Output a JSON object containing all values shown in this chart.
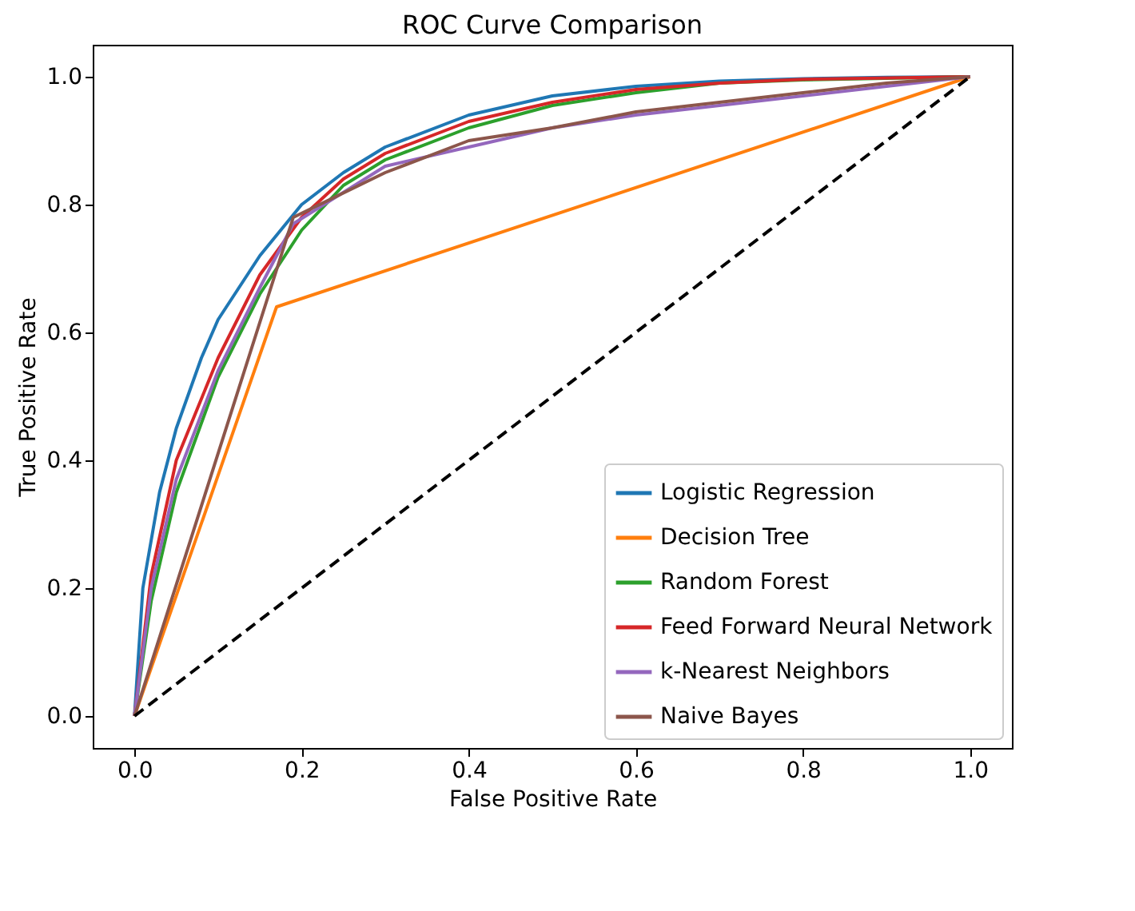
{
  "chart_data": {
    "type": "line",
    "title": "ROC Curve Comparison",
    "xlabel": "False Positive Rate",
    "ylabel": "True Positive Rate",
    "xlim": [
      -0.05,
      1.05
    ],
    "ylim": [
      -0.05,
      1.05
    ],
    "xticks": [
      {
        "value": 0,
        "label": "0.0"
      },
      {
        "value": 0.2,
        "label": "0.2"
      },
      {
        "value": 0.4,
        "label": "0.4"
      },
      {
        "value": 0.6,
        "label": "0.6"
      },
      {
        "value": 0.8,
        "label": "0.8"
      },
      {
        "value": 1,
        "label": "1.0"
      }
    ],
    "yticks": [
      {
        "value": 0,
        "label": "0.0"
      },
      {
        "value": 0.2,
        "label": "0.2"
      },
      {
        "value": 0.4,
        "label": "0.4"
      },
      {
        "value": 0.6,
        "label": "0.6"
      },
      {
        "value": 0.8,
        "label": "0.8"
      },
      {
        "value": 1,
        "label": "1.0"
      }
    ],
    "grid": false,
    "legend": "bottom right",
    "line_style": "solid",
    "series": [
      {
        "name": "Logistic Regression",
        "color": "#1f77b4",
        "x": [
          0,
          0.01,
          0.03,
          0.05,
          0.08,
          0.1,
          0.15,
          0.2,
          0.25,
          0.3,
          0.4,
          0.5,
          0.6,
          0.7,
          0.8,
          0.9,
          1
        ],
        "values": [
          0,
          0.2,
          0.35,
          0.45,
          0.56,
          0.62,
          0.72,
          0.8,
          0.85,
          0.89,
          0.94,
          0.97,
          0.985,
          0.993,
          0.997,
          0.999,
          1
        ]
      },
      {
        "name": "Decision Tree",
        "color": "#ff7f0e",
        "x": [
          0,
          0.17,
          1
        ],
        "values": [
          0,
          0.64,
          1
        ]
      },
      {
        "name": "Random Forest",
        "color": "#2ca02c",
        "x": [
          0,
          0.02,
          0.05,
          0.1,
          0.15,
          0.2,
          0.25,
          0.3,
          0.4,
          0.5,
          0.6,
          0.7,
          0.8,
          1
        ],
        "values": [
          0,
          0.18,
          0.35,
          0.53,
          0.66,
          0.76,
          0.83,
          0.87,
          0.92,
          0.955,
          0.975,
          0.99,
          0.995,
          1
        ]
      },
      {
        "name": "Feed Forward Neural Network",
        "color": "#d62728",
        "x": [
          0,
          0.02,
          0.05,
          0.1,
          0.15,
          0.2,
          0.25,
          0.3,
          0.4,
          0.5,
          0.6,
          0.7,
          0.8,
          1
        ],
        "values": [
          0,
          0.22,
          0.4,
          0.56,
          0.69,
          0.78,
          0.84,
          0.88,
          0.93,
          0.96,
          0.98,
          0.99,
          0.996,
          1
        ]
      },
      {
        "name": "k-Nearest Neighbors",
        "color": "#9467bd",
        "x": [
          0,
          0.02,
          0.05,
          0.1,
          0.15,
          0.19,
          0.3,
          0.4,
          0.5,
          0.6,
          0.7,
          0.8,
          0.9,
          1
        ],
        "values": [
          0,
          0.2,
          0.37,
          0.54,
          0.67,
          0.77,
          0.86,
          0.89,
          0.92,
          0.94,
          0.955,
          0.97,
          0.985,
          1
        ]
      },
      {
        "name": "Naive Bayes",
        "color": "#8c564b",
        "x": [
          0,
          0.19,
          0.3,
          0.4,
          0.5,
          0.6,
          0.7,
          0.8,
          0.9,
          1
        ],
        "values": [
          0,
          0.78,
          0.85,
          0.9,
          0.92,
          0.945,
          0.96,
          0.975,
          0.99,
          1
        ]
      },
      {
        "color": "#000000",
        "line_style": "dashed",
        "x": [
          0,
          1
        ],
        "values": [
          0,
          1
        ]
      }
    ]
  }
}
